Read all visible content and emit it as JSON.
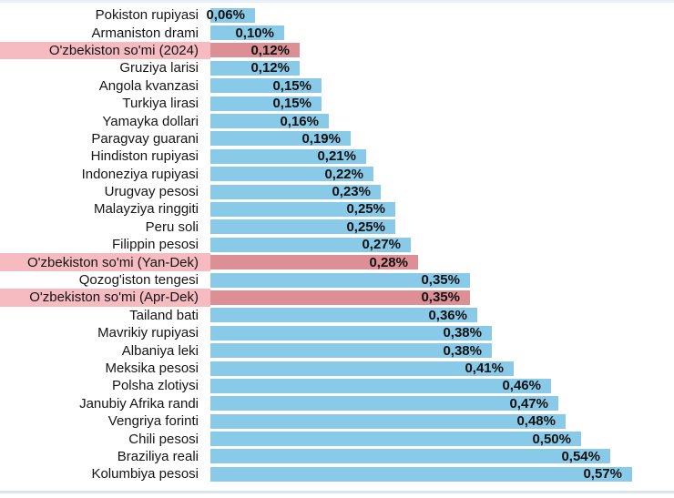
{
  "page": {
    "background": "#ffffff",
    "top_border_color": "#E9EFF8",
    "bottom_border_color": "#D9E4F1"
  },
  "chart_data": {
    "type": "bar",
    "orientation": "horizontal",
    "title": "",
    "xlabel": "",
    "ylabel": "",
    "unit": "%",
    "decimal_separator": ",",
    "axis_range": [
      0,
      0.62
    ],
    "grid": false,
    "legend": false,
    "colors": {
      "bar_default": "#89CAE9",
      "bar_highlight": "#DC8F94",
      "row_highlight_bg": "#F5BBC1",
      "label_text": "#141414",
      "value_text": "#111111"
    },
    "max_value": 0.57,
    "rows": [
      {
        "label": "Pokiston rupiyasi",
        "value": 0.06,
        "value_label": "0,06%",
        "highlight": false
      },
      {
        "label": "Armaniston drami",
        "value": 0.1,
        "value_label": "0,10%",
        "highlight": false
      },
      {
        "label": "O'zbekiston so'mi (2024)",
        "value": 0.12,
        "value_label": "0,12%",
        "highlight": true
      },
      {
        "label": "Gruziya larisi",
        "value": 0.12,
        "value_label": "0,12%",
        "highlight": false
      },
      {
        "label": "Angola kvanzasi",
        "value": 0.15,
        "value_label": "0,15%",
        "highlight": false
      },
      {
        "label": "Turkiya lirasi",
        "value": 0.15,
        "value_label": "0,15%",
        "highlight": false
      },
      {
        "label": "Yamayka dollari",
        "value": 0.16,
        "value_label": "0,16%",
        "highlight": false
      },
      {
        "label": "Paragvay guarani",
        "value": 0.19,
        "value_label": "0,19%",
        "highlight": false
      },
      {
        "label": "Hindiston rupiyasi",
        "value": 0.21,
        "value_label": "0,21%",
        "highlight": false
      },
      {
        "label": "Indoneziya rupiyasi",
        "value": 0.22,
        "value_label": "0,22%",
        "highlight": false
      },
      {
        "label": "Urugvay pesosi",
        "value": 0.23,
        "value_label": "0,23%",
        "highlight": false
      },
      {
        "label": "Malayziya ringgiti",
        "value": 0.25,
        "value_label": "0,25%",
        "highlight": false
      },
      {
        "label": "Peru soli",
        "value": 0.25,
        "value_label": "0,25%",
        "highlight": false
      },
      {
        "label": "Filippin pesosi",
        "value": 0.27,
        "value_label": "0,27%",
        "highlight": false
      },
      {
        "label": "O'zbekiston so'mi (Yan-Dek)",
        "value": 0.28,
        "value_label": "0,28%",
        "highlight": true
      },
      {
        "label": "Qozog'iston tengesi",
        "value": 0.35,
        "value_label": "0,35%",
        "highlight": false
      },
      {
        "label": "O'zbekiston so'mi (Apr-Dek)",
        "value": 0.35,
        "value_label": "0,35%",
        "highlight": true
      },
      {
        "label": "Tailand bati",
        "value": 0.36,
        "value_label": "0,36%",
        "highlight": false
      },
      {
        "label": "Mavrikiy rupiyasi",
        "value": 0.38,
        "value_label": "0,38%",
        "highlight": false
      },
      {
        "label": "Albaniya leki",
        "value": 0.38,
        "value_label": "0,38%",
        "highlight": false
      },
      {
        "label": "Meksika pesosi",
        "value": 0.41,
        "value_label": "0,41%",
        "highlight": false
      },
      {
        "label": "Polsha zlotiysi",
        "value": 0.46,
        "value_label": "0,46%",
        "highlight": false
      },
      {
        "label": "Janubiy Afrika randi",
        "value": 0.47,
        "value_label": "0,47%",
        "highlight": false
      },
      {
        "label": "Vengriya forinti",
        "value": 0.48,
        "value_label": "0,48%",
        "highlight": false
      },
      {
        "label": "Chili pesosi",
        "value": 0.5,
        "value_label": "0,50%",
        "highlight": false
      },
      {
        "label": "Braziliya reali",
        "value": 0.54,
        "value_label": "0,54%",
        "highlight": false
      },
      {
        "label": "Kolumbiya pesosi",
        "value": 0.57,
        "value_label": "0,57%",
        "highlight": false
      }
    ]
  }
}
